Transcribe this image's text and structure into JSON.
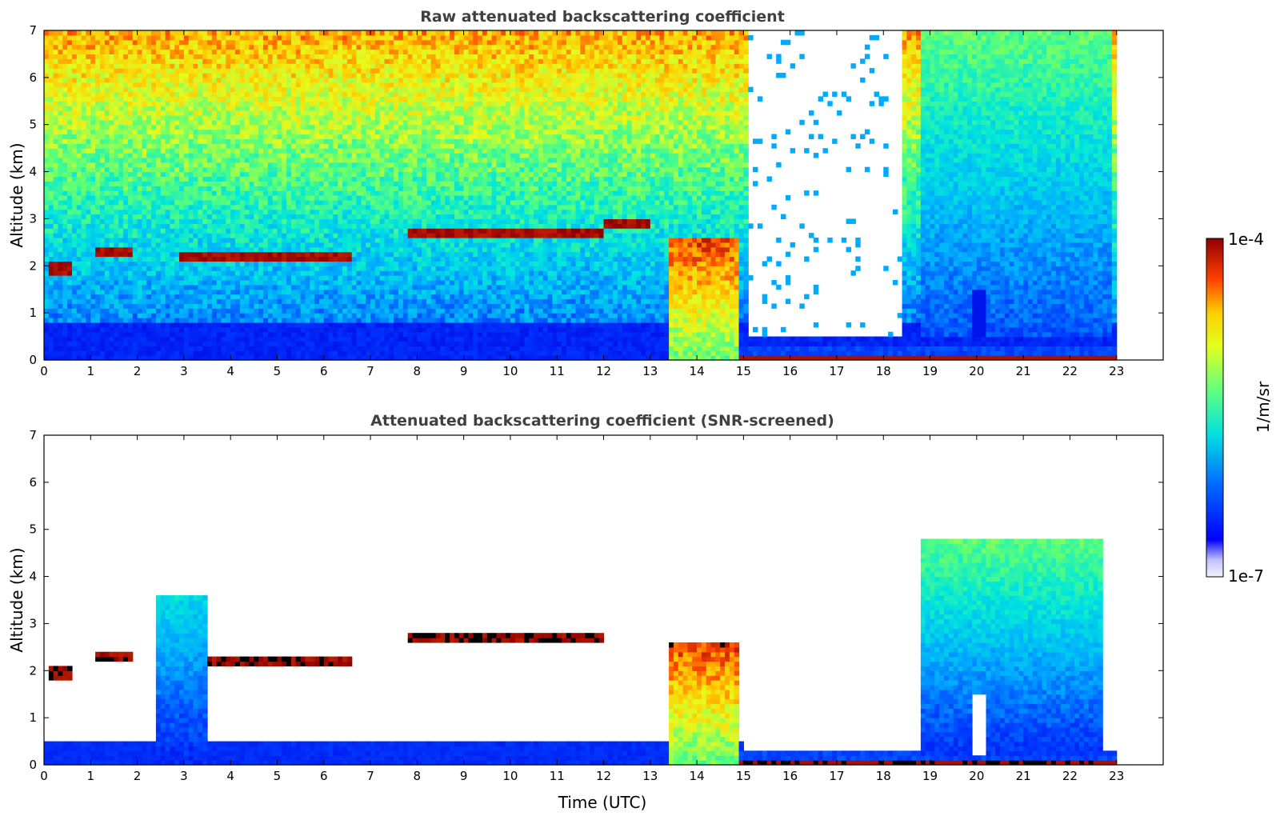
{
  "chart_data": [
    {
      "type": "heatmap",
      "title": "Raw attenuated backscattering coefficient",
      "xlabel": "",
      "ylabel": "Altitude (km)",
      "xlim": [
        0,
        24
      ],
      "ylim": [
        0,
        7
      ],
      "x_ticks": [
        0,
        1,
        2,
        3,
        4,
        5,
        6,
        7,
        8,
        9,
        10,
        11,
        12,
        13,
        14,
        15,
        16,
        17,
        18,
        19,
        20,
        21,
        22,
        23
      ],
      "y_ticks": [
        0,
        1,
        2,
        3,
        4,
        5,
        6,
        7
      ],
      "data_extent_x": [
        0,
        23
      ],
      "features": [
        {
          "kind": "cloud_layer",
          "x": [
            0.1,
            0.6
          ],
          "y": 1.95
        },
        {
          "kind": "cloud_layer",
          "x": [
            1.1,
            1.9
          ],
          "y": 2.3
        },
        {
          "kind": "cloud_layer",
          "x": [
            2.9,
            6.6
          ],
          "y": 2.2
        },
        {
          "kind": "cloud_layer",
          "x": [
            7.8,
            12.0
          ],
          "y": 2.7
        },
        {
          "kind": "cloud_layer",
          "x": [
            12.0,
            13.0
          ],
          "y": 2.9
        },
        {
          "kind": "precipitation",
          "x": [
            13.4,
            14.9
          ],
          "y": [
            0,
            2.6
          ]
        },
        {
          "kind": "boundary_layer",
          "x": [
            14.9,
            23
          ],
          "y": [
            0,
            0.35
          ]
        },
        {
          "kind": "no_signal",
          "x": [
            15.1,
            18.4
          ],
          "y": [
            0.5,
            7
          ]
        },
        {
          "kind": "aerosol",
          "x": [
            18.8,
            22.9
          ],
          "y": [
            0.5,
            7
          ]
        }
      ],
      "grid": false
    },
    {
      "type": "heatmap",
      "title": "Attenuated backscattering coefficient (SNR-screened)",
      "xlabel": "Time (UTC)",
      "ylabel": "Altitude (km)",
      "xlim": [
        0,
        24
      ],
      "ylim": [
        0,
        7
      ],
      "x_ticks": [
        0,
        1,
        2,
        3,
        4,
        5,
        6,
        7,
        8,
        9,
        10,
        11,
        12,
        13,
        14,
        15,
        16,
        17,
        18,
        19,
        20,
        21,
        22,
        23
      ],
      "y_ticks": [
        0,
        1,
        2,
        3,
        4,
        5,
        6,
        7
      ],
      "data_extent_x": [
        0,
        23
      ],
      "features": [
        {
          "kind": "cloud_layer",
          "x": [
            0.1,
            0.6
          ],
          "y": 1.95
        },
        {
          "kind": "cloud_layer",
          "x": [
            1.1,
            1.9
          ],
          "y": 2.3
        },
        {
          "kind": "cloud_layer",
          "x": [
            2.9,
            6.6
          ],
          "y": 2.2
        },
        {
          "kind": "cloud_layer",
          "x": [
            7.8,
            12.0
          ],
          "y": 2.7
        },
        {
          "kind": "aerosol_plume",
          "x": [
            2.4,
            3.5
          ],
          "y": [
            0,
            3.6
          ]
        },
        {
          "kind": "precipitation",
          "x": [
            13.4,
            14.9
          ],
          "y": [
            0,
            2.6
          ]
        },
        {
          "kind": "boundary_layer",
          "x": [
            14.9,
            23
          ],
          "y": [
            0,
            0.35
          ]
        },
        {
          "kind": "aerosol",
          "x": [
            18.8,
            22.7
          ],
          "y": [
            0.2,
            4.8
          ]
        }
      ],
      "grid": false
    }
  ],
  "colorbar": {
    "label": "1/m/sr",
    "max_label": "1e-4",
    "min_label": "1e-7",
    "colormap": "jet-with-white-low"
  }
}
